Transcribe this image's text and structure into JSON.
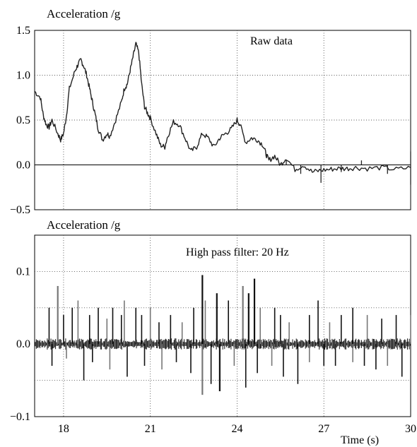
{
  "chart_data": [
    {
      "type": "line",
      "ylabel": "Acceleration /g",
      "annotation": "Raw data",
      "xlim": [
        17,
        30
      ],
      "ylim": [
        -0.5,
        1.5
      ],
      "yticks": [
        "1.5",
        "1.0",
        "0.5",
        "0.0",
        "−0.5"
      ],
      "ytick_values": [
        1.5,
        1.0,
        0.5,
        0.0,
        -0.5
      ],
      "xgrid": [
        18,
        21,
        24,
        27
      ],
      "ygrid": [
        1.0,
        0.5
      ],
      "zero_line": true,
      "series": [
        {
          "x": [
            17.0,
            17.2,
            17.3,
            17.4,
            17.5,
            17.6,
            17.8,
            17.9,
            18.0,
            18.1,
            18.2,
            18.4,
            18.5,
            18.6,
            18.7,
            18.8,
            18.9,
            19.0,
            19.1,
            19.2,
            19.35,
            19.5,
            19.6,
            19.8,
            20.0,
            20.1,
            20.2,
            20.3,
            20.4,
            20.5,
            20.6,
            20.7,
            20.8,
            20.9,
            21.0,
            21.2,
            21.35,
            21.5,
            21.6,
            21.8,
            22.0,
            22.2,
            22.4,
            22.6,
            22.8,
            23.0,
            23.2,
            23.4,
            23.6,
            23.8,
            24.0,
            24.1,
            24.3,
            24.5,
            24.7,
            24.9,
            25.0,
            25.1,
            25.3,
            25.5,
            25.7,
            26.0,
            26.3,
            26.6,
            26.9,
            27.2,
            27.5,
            27.8,
            28.1,
            28.5,
            29.0,
            29.5,
            30.0
          ],
          "y": [
            0.82,
            0.75,
            0.55,
            0.45,
            0.42,
            0.5,
            0.35,
            0.28,
            0.35,
            0.55,
            0.85,
            1.05,
            1.12,
            1.17,
            1.1,
            1.0,
            0.85,
            0.7,
            0.55,
            0.4,
            0.28,
            0.35,
            0.32,
            0.5,
            0.7,
            0.85,
            0.9,
            1.05,
            1.2,
            1.35,
            1.25,
            0.9,
            0.65,
            0.58,
            0.52,
            0.35,
            0.22,
            0.2,
            0.32,
            0.48,
            0.45,
            0.3,
            0.15,
            0.2,
            0.35,
            0.3,
            0.2,
            0.3,
            0.35,
            0.4,
            0.5,
            0.45,
            0.25,
            0.3,
            0.28,
            0.22,
            0.12,
            0.05,
            0.1,
            0.0,
            0.08,
            -0.05,
            0.0,
            -0.08,
            -0.06,
            -0.05,
            -0.04,
            -0.04,
            -0.03,
            -0.04,
            -0.03,
            -0.05,
            -0.03
          ]
        }
      ]
    },
    {
      "type": "line",
      "ylabel": "Acceleration /g",
      "annotation": "High pass filter: 20 Hz",
      "xlabel": "Time (s)",
      "xlim": [
        17,
        30
      ],
      "ylim": [
        -0.1,
        0.15
      ],
      "yticks": [
        "0.1",
        "0.0",
        "−0.1"
      ],
      "ytick_values": [
        0.1,
        0.0,
        -0.1
      ],
      "xticks": [
        "18",
        "21",
        "24",
        "27",
        "30"
      ],
      "xtick_values": [
        18,
        21,
        24,
        27,
        30
      ],
      "xgrid": [
        18,
        21,
        24,
        27
      ],
      "ygrid": [
        0.1,
        0.05,
        -0.05
      ],
      "series": [
        {
          "x": [
            17.5,
            17.8,
            18.0,
            18.3,
            18.5,
            18.9,
            19.2,
            19.5,
            19.7,
            20.0,
            20.1,
            20.5,
            20.7,
            21.0,
            21.3,
            21.7,
            22.1,
            22.5,
            22.8,
            22.9,
            23.3,
            23.7,
            24.2,
            24.4,
            24.6,
            24.8,
            25.3,
            25.5,
            25.8,
            26.5,
            26.8,
            27.2,
            27.6,
            28.0,
            28.5,
            29.0,
            29.5,
            30.0
          ],
          "y": [
            0.05,
            0.08,
            0.04,
            0.05,
            0.06,
            0.04,
            0.05,
            0.035,
            0.05,
            0.04,
            0.06,
            0.05,
            0.04,
            0.05,
            0.03,
            0.04,
            0.03,
            0.05,
            0.095,
            0.06,
            0.07,
            0.06,
            0.08,
            0.07,
            0.09,
            0.05,
            0.05,
            0.04,
            0.03,
            0.04,
            0.06,
            0.03,
            0.04,
            0.05,
            0.04,
            0.035,
            0.04,
            0.04
          ]
        },
        {
          "x": [
            17.6,
            18.1,
            18.7,
            19.0,
            19.6,
            20.2,
            20.8,
            21.4,
            21.9,
            22.4,
            22.8,
            23.1,
            23.4,
            23.9,
            24.3,
            24.7,
            25.2,
            25.6,
            26.1,
            26.5,
            27.0,
            27.4,
            28.0,
            28.4,
            28.8,
            29.2,
            29.7
          ],
          "y": [
            -0.03,
            -0.02,
            -0.05,
            -0.025,
            -0.035,
            -0.045,
            -0.03,
            -0.035,
            -0.025,
            -0.04,
            -0.07,
            -0.055,
            -0.065,
            -0.03,
            -0.06,
            -0.04,
            -0.03,
            -0.045,
            -0.055,
            -0.025,
            -0.03,
            -0.03,
            -0.025,
            -0.03,
            -0.035,
            -0.03,
            -0.045
          ]
        }
      ]
    }
  ]
}
